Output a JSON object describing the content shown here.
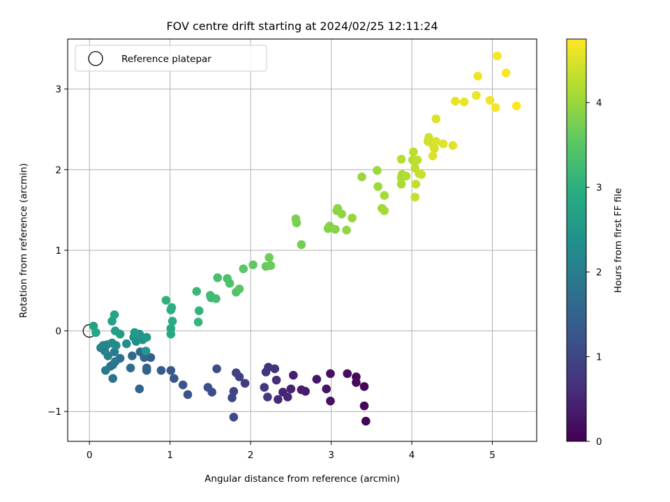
{
  "chart_data": {
    "type": "scatter",
    "title": "FOV centre drift starting at 2024/02/25 12:11:24",
    "xlabel": "Angular distance from reference (arcmin)",
    "ylabel": "Rotation from reference (arcmin)",
    "colorbar_label": "Hours from first FF file",
    "xlim": [
      -0.27,
      5.55
    ],
    "ylim": [
      -1.37,
      3.62
    ],
    "clim": [
      0,
      4.75
    ],
    "xticks": [
      0,
      1,
      2,
      3,
      4,
      5
    ],
    "yticks": [
      -1,
      0,
      1,
      2,
      3
    ],
    "cticks": [
      0,
      1,
      2,
      3,
      4
    ],
    "grid": true,
    "colormap": "viridis",
    "legend": {
      "position": "top-left",
      "label": "Reference platepar"
    },
    "reference_point": {
      "x": 0,
      "y": 0
    },
    "points": [
      [
        3.43,
        -1.12,
        0.05
      ],
      [
        3.41,
        -0.93,
        0.08
      ],
      [
        3.41,
        -0.69,
        0.1
      ],
      [
        3.31,
        -0.57,
        0.12
      ],
      [
        3.31,
        -0.64,
        0.14
      ],
      [
        3.2,
        -0.53,
        0.16
      ],
      [
        2.99,
        -0.53,
        0.2
      ],
      [
        2.99,
        -0.87,
        0.22
      ],
      [
        2.94,
        -0.72,
        0.26
      ],
      [
        2.82,
        -0.6,
        0.3
      ],
      [
        2.68,
        -0.75,
        0.34
      ],
      [
        2.63,
        -0.73,
        0.38
      ],
      [
        2.53,
        -0.55,
        0.42
      ],
      [
        2.5,
        -0.72,
        0.46
      ],
      [
        2.4,
        -0.76,
        0.5
      ],
      [
        2.46,
        -0.82,
        0.54
      ],
      [
        2.34,
        -0.85,
        0.58
      ],
      [
        2.32,
        -0.61,
        0.62
      ],
      [
        2.22,
        -0.45,
        0.66
      ],
      [
        2.3,
        -0.47,
        0.7
      ],
      [
        2.19,
        -0.51,
        0.74
      ],
      [
        2.17,
        -0.7,
        0.78
      ],
      [
        2.21,
        -0.82,
        0.82
      ],
      [
        1.93,
        -0.65,
        0.86
      ],
      [
        1.86,
        -0.57,
        0.9
      ],
      [
        1.82,
        -0.52,
        0.94
      ],
      [
        1.79,
        -0.75,
        0.98
      ],
      [
        1.77,
        -0.83,
        1.02
      ],
      [
        1.79,
        -1.07,
        1.06
      ],
      [
        1.58,
        -0.47,
        1.1
      ],
      [
        1.52,
        -0.76,
        1.14
      ],
      [
        1.47,
        -0.7,
        1.18
      ],
      [
        1.22,
        -0.79,
        1.22
      ],
      [
        1.16,
        -0.67,
        1.26
      ],
      [
        1.05,
        -0.59,
        1.3
      ],
      [
        1.01,
        -0.49,
        1.34
      ],
      [
        0.89,
        -0.49,
        1.38
      ],
      [
        0.76,
        -0.33,
        1.42
      ],
      [
        0.71,
        -0.46,
        1.46
      ],
      [
        0.71,
        -0.49,
        1.5
      ],
      [
        0.62,
        -0.72,
        1.54
      ],
      [
        0.68,
        -0.33,
        1.58
      ],
      [
        0.63,
        -0.26,
        1.62
      ],
      [
        0.53,
        -0.31,
        1.66
      ],
      [
        0.51,
        -0.46,
        1.7
      ],
      [
        0.38,
        -0.34,
        1.74
      ],
      [
        0.29,
        -0.59,
        1.78
      ],
      [
        0.26,
        -0.44,
        1.82
      ],
      [
        0.29,
        -0.42,
        1.86
      ],
      [
        0.32,
        -0.38,
        1.9
      ],
      [
        0.2,
        -0.49,
        1.94
      ],
      [
        0.31,
        -0.26,
        1.98
      ],
      [
        0.23,
        -0.31,
        2.02
      ],
      [
        0.19,
        -0.25,
        2.06
      ],
      [
        0.14,
        -0.21,
        2.1
      ],
      [
        0.17,
        -0.18,
        2.14
      ],
      [
        0.22,
        -0.17,
        2.18
      ],
      [
        0.28,
        -0.15,
        2.22
      ],
      [
        0.33,
        -0.18,
        2.26
      ],
      [
        0.46,
        -0.16,
        2.3
      ],
      [
        0.58,
        -0.13,
        2.34
      ],
      [
        0.55,
        -0.08,
        2.38
      ],
      [
        0.62,
        -0.04,
        2.42
      ],
      [
        0.66,
        -0.11,
        2.46
      ],
      [
        0.7,
        -0.25,
        2.5
      ],
      [
        0.71,
        -0.08,
        2.54
      ],
      [
        0.56,
        -0.02,
        2.58
      ],
      [
        0.38,
        -0.04,
        2.62
      ],
      [
        0.32,
        0.0,
        2.66
      ],
      [
        0.05,
        0.06,
        2.7
      ],
      [
        0.28,
        0.12,
        2.74
      ],
      [
        0.31,
        0.2,
        2.78
      ],
      [
        0.08,
        -0.02,
        2.82
      ],
      [
        1.01,
        0.03,
        2.86
      ],
      [
        1.01,
        -0.04,
        2.9
      ],
      [
        1.03,
        0.12,
        2.94
      ],
      [
        1.01,
        0.26,
        2.98
      ],
      [
        1.02,
        0.29,
        3.02
      ],
      [
        0.95,
        0.38,
        3.06
      ],
      [
        1.36,
        0.25,
        3.1
      ],
      [
        1.35,
        0.11,
        3.14
      ],
      [
        1.33,
        0.49,
        3.18
      ],
      [
        1.51,
        0.41,
        3.22
      ],
      [
        1.5,
        0.44,
        3.26
      ],
      [
        1.57,
        0.4,
        3.3
      ],
      [
        1.59,
        0.66,
        3.34
      ],
      [
        1.71,
        0.65,
        3.38
      ],
      [
        1.74,
        0.59,
        3.42
      ],
      [
        1.82,
        0.48,
        3.46
      ],
      [
        1.86,
        0.52,
        3.5
      ],
      [
        1.91,
        0.77,
        3.54
      ],
      [
        2.03,
        0.82,
        3.58
      ],
      [
        2.19,
        0.8,
        3.62
      ],
      [
        2.25,
        0.81,
        3.66
      ],
      [
        2.23,
        0.91,
        3.7
      ],
      [
        2.63,
        1.07,
        3.74
      ],
      [
        2.57,
        1.34,
        3.78
      ],
      [
        2.56,
        1.39,
        3.82
      ],
      [
        2.96,
        1.27,
        3.86
      ],
      [
        2.98,
        1.3,
        3.88
      ],
      [
        3.05,
        1.26,
        3.9
      ],
      [
        3.07,
        1.49,
        3.92
      ],
      [
        3.08,
        1.52,
        3.94
      ],
      [
        3.13,
        1.45,
        3.96
      ],
      [
        3.19,
        1.25,
        3.98
      ],
      [
        3.26,
        1.4,
        4.0
      ],
      [
        3.38,
        1.91,
        4.02
      ],
      [
        3.57,
        1.99,
        4.04
      ],
      [
        3.58,
        1.79,
        4.06
      ],
      [
        3.63,
        1.52,
        4.08
      ],
      [
        3.66,
        1.49,
        4.1
      ],
      [
        3.66,
        1.68,
        4.12
      ],
      [
        3.87,
        1.82,
        4.14
      ],
      [
        3.87,
        1.9,
        4.16
      ],
      [
        3.88,
        1.94,
        4.18
      ],
      [
        3.93,
        1.92,
        4.2
      ],
      [
        3.87,
        2.13,
        4.22
      ],
      [
        4.01,
        2.12,
        4.24
      ],
      [
        4.02,
        2.22,
        4.26
      ],
      [
        4.04,
        2.02,
        4.28
      ],
      [
        4.07,
        2.12,
        4.3
      ],
      [
        4.05,
        1.82,
        4.32
      ],
      [
        4.09,
        1.95,
        4.34
      ],
      [
        4.04,
        1.66,
        4.36
      ],
      [
        4.12,
        1.94,
        4.38
      ],
      [
        4.2,
        2.35,
        4.4
      ],
      [
        4.21,
        2.4,
        4.42
      ],
      [
        4.26,
        2.31,
        4.44
      ],
      [
        4.28,
        2.26,
        4.46
      ],
      [
        4.3,
        2.35,
        4.48
      ],
      [
        4.26,
        2.17,
        4.5
      ],
      [
        4.3,
        2.63,
        4.52
      ],
      [
        4.39,
        2.32,
        4.54
      ],
      [
        4.51,
        2.3,
        4.56
      ],
      [
        4.54,
        2.85,
        4.58
      ],
      [
        4.65,
        2.84,
        4.6
      ],
      [
        4.8,
        2.92,
        4.62
      ],
      [
        4.82,
        3.16,
        4.64
      ],
      [
        4.97,
        2.86,
        4.66
      ],
      [
        5.04,
        2.77,
        4.68
      ],
      [
        5.06,
        3.41,
        4.7
      ],
      [
        5.17,
        3.2,
        4.72
      ],
      [
        5.3,
        2.79,
        4.74
      ]
    ]
  }
}
